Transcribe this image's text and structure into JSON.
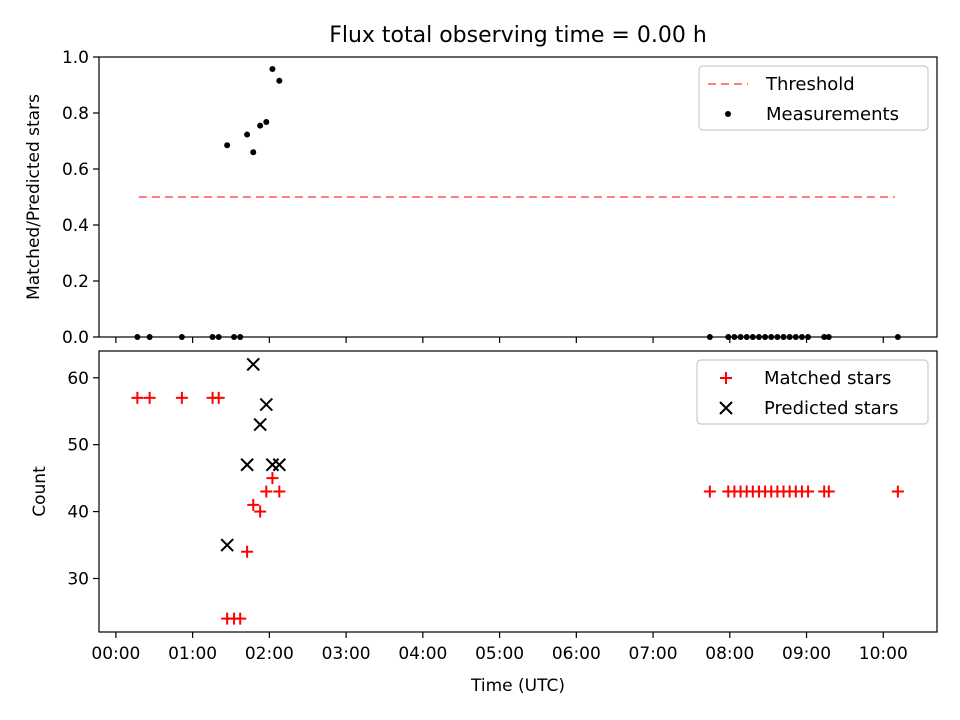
{
  "title": "Flux total observing time = 0.00 h",
  "chart_data": [
    {
      "type": "scatter",
      "ylabel": "Matched/Predicted stars",
      "ylim": [
        0.0,
        1.0
      ],
      "yticks": [
        "0.0",
        "0.2",
        "0.4",
        "0.6",
        "0.8",
        "1.0"
      ],
      "xlim": [
        -0.22,
        10.7
      ],
      "grid": false,
      "legend_position": "top-right",
      "series": [
        {
          "name": "Threshold",
          "style": "dashed-line",
          "color": "#ff7f7f",
          "x": [
            0.3,
            10.15
          ],
          "y": [
            0.5,
            0.5
          ]
        },
        {
          "name": "Measurements",
          "style": "dot",
          "color": "#000000",
          "x": [
            0.28,
            0.44,
            0.86,
            1.26,
            1.34,
            1.45,
            1.54,
            1.62,
            1.71,
            1.79,
            1.88,
            1.96,
            2.04,
            2.13,
            7.74,
            7.98,
            8.06,
            8.14,
            8.22,
            8.3,
            8.38,
            8.46,
            8.54,
            8.62,
            8.7,
            8.78,
            8.86,
            8.94,
            9.02,
            9.23,
            9.29,
            10.19
          ],
          "y": [
            0.0,
            0.0,
            0.0,
            0.0,
            0.0,
            0.685,
            0.0,
            0.0,
            0.723,
            0.66,
            0.755,
            0.768,
            0.957,
            0.915,
            0.0,
            0.0,
            0.0,
            0.0,
            0.0,
            0.0,
            0.0,
            0.0,
            0.0,
            0.0,
            0.0,
            0.0,
            0.0,
            0.0,
            0.0,
            0.0,
            0.0,
            0.0
          ]
        }
      ]
    },
    {
      "type": "scatter",
      "ylabel": "Count",
      "xlabel": "Time (UTC)",
      "ylim": [
        22,
        64
      ],
      "yticks": [
        "30",
        "40",
        "50",
        "60"
      ],
      "xlim": [
        -0.22,
        10.7
      ],
      "xticks": [
        "00:00",
        "01:00",
        "02:00",
        "03:00",
        "04:00",
        "05:00",
        "06:00",
        "07:00",
        "08:00",
        "09:00",
        "10:00"
      ],
      "grid": false,
      "legend_position": "top-right",
      "series": [
        {
          "name": "Matched stars",
          "style": "plus",
          "color": "#ff0000",
          "x": [
            0.28,
            0.44,
            0.86,
            1.26,
            1.34,
            1.45,
            1.54,
            1.62,
            1.71,
            1.79,
            1.88,
            1.96,
            2.04,
            2.13,
            7.74,
            7.98,
            8.06,
            8.14,
            8.22,
            8.3,
            8.38,
            8.46,
            8.54,
            8.62,
            8.7,
            8.78,
            8.86,
            8.94,
            9.02,
            9.23,
            9.29,
            10.19
          ],
          "y": [
            57,
            57,
            57,
            57,
            57,
            24,
            24,
            24,
            34,
            41,
            40,
            43,
            45,
            43,
            43,
            43,
            43,
            43,
            43,
            43,
            43,
            43,
            43,
            43,
            43,
            43,
            43,
            43,
            43,
            43,
            43,
            43
          ]
        },
        {
          "name": "Predicted stars",
          "style": "x",
          "color": "#000000",
          "x": [
            1.45,
            1.71,
            1.79,
            1.88,
            1.96,
            2.04,
            2.13
          ],
          "y": [
            35,
            47,
            62,
            53,
            56,
            47,
            47
          ]
        }
      ]
    }
  ]
}
